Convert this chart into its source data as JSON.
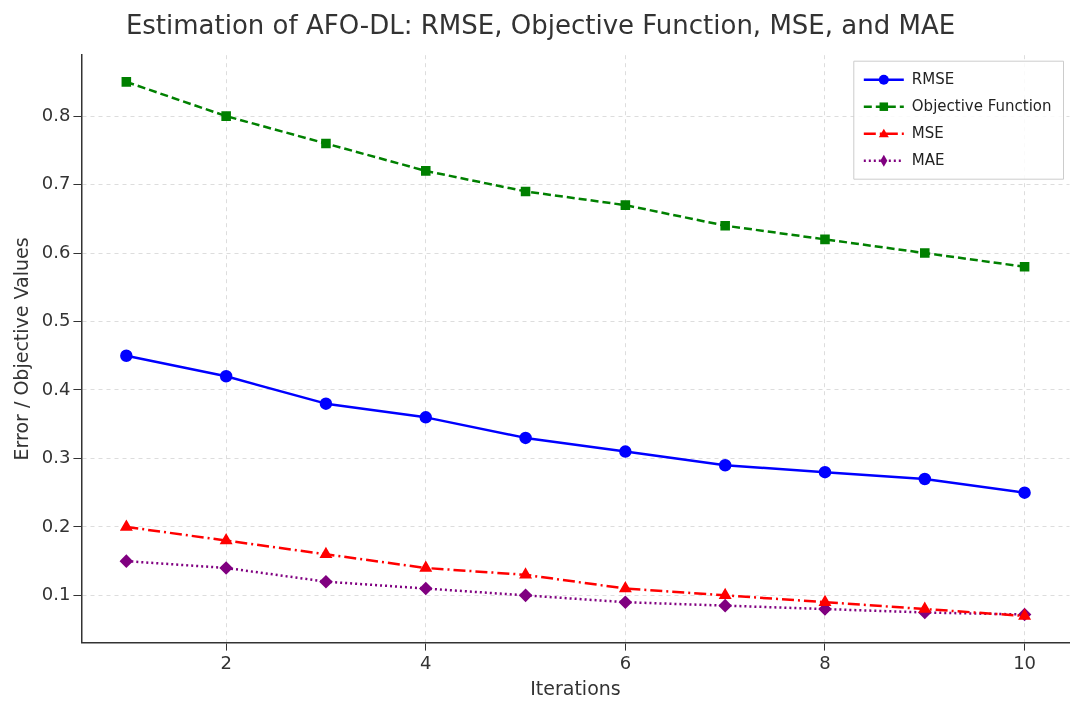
{
  "chart_data": {
    "type": "line",
    "title": "Estimation of AFO-DL: RMSE, Objective Function, MSE, and MAE",
    "xlabel": "Iterations",
    "ylabel": "Error / Objective Values",
    "x": [
      1,
      2,
      3,
      4,
      5,
      6,
      7,
      8,
      9,
      10
    ],
    "series": [
      {
        "name": "RMSE",
        "color": "#0000ff",
        "marker": "circle",
        "line_style": "solid",
        "values": [
          0.45,
          0.42,
          0.38,
          0.36,
          0.33,
          0.31,
          0.29,
          0.28,
          0.27,
          0.25
        ]
      },
      {
        "name": "Objective Function",
        "color": "#008000",
        "marker": "square",
        "line_style": "dashed",
        "values": [
          0.85,
          0.8,
          0.76,
          0.72,
          0.69,
          0.67,
          0.64,
          0.62,
          0.6,
          0.58
        ]
      },
      {
        "name": "MSE",
        "color": "#ff0000",
        "marker": "triangle",
        "line_style": "dashdot",
        "values": [
          0.2,
          0.18,
          0.16,
          0.14,
          0.13,
          0.11,
          0.1,
          0.09,
          0.08,
          0.07
        ]
      },
      {
        "name": "MAE",
        "color": "#800080",
        "marker": "diamond",
        "line_style": "dotted",
        "values": [
          0.15,
          0.14,
          0.12,
          0.11,
          0.1,
          0.09,
          0.085,
          0.08,
          0.075,
          0.072
        ]
      }
    ],
    "xlim": [
      0.55,
      10.45
    ],
    "xticks": [
      2,
      4,
      6,
      8,
      10
    ],
    "ylim": [
      0.031,
      0.889
    ],
    "yticks": [
      0.1,
      0.2,
      0.3,
      0.4,
      0.5,
      0.6,
      0.7,
      0.8
    ],
    "grid": true,
    "legend": "top right"
  }
}
